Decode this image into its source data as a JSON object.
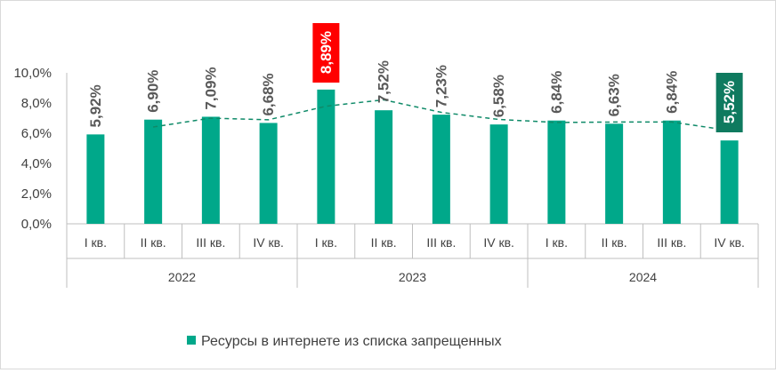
{
  "chart_data": {
    "type": "bar",
    "categories": [
      "I кв.",
      "II кв.",
      "III кв.",
      "IV кв.",
      "I кв.",
      "II кв.",
      "III кв.",
      "IV кв.",
      "I кв.",
      "II кв.",
      "III кв.",
      "IV кв."
    ],
    "groups": [
      "2022",
      "2023",
      "2024"
    ],
    "series": [
      {
        "name": "Ресурсы в интернете из списка запрещенных",
        "values": [
          5.92,
          6.9,
          7.09,
          6.68,
          8.89,
          7.52,
          7.23,
          6.58,
          6.84,
          6.63,
          6.84,
          5.52
        ],
        "labels": [
          "5,92%",
          "6,90%",
          "7,09%",
          "6,68%",
          "8,89%",
          "7,52%",
          "7,23%",
          "6,58%",
          "6,84%",
          "6,63%",
          "6,84%",
          "5,52%"
        ]
      }
    ],
    "trendline": {
      "style": "dashed",
      "type": "moving-average",
      "values": [
        null,
        6.41,
        7.0,
        6.89,
        7.79,
        8.21,
        7.38,
        6.91,
        6.71,
        6.74,
        6.74,
        6.18
      ]
    },
    "highlights": [
      {
        "index": 4,
        "color": "#ff0000"
      },
      {
        "index": 11,
        "color": "#0f7a5f"
      }
    ],
    "yticks": [
      "0,0%",
      "2,0%",
      "4,0%",
      "6,0%",
      "8,0%",
      "10,0%"
    ],
    "ylim": [
      0,
      10
    ],
    "grid": false,
    "legend_position": "bottom",
    "colors": {
      "bar": "#00a88a",
      "trend": "#0f8a68",
      "axis": "#bfbfbf",
      "text": "#404040",
      "label_text": "#595959"
    }
  }
}
